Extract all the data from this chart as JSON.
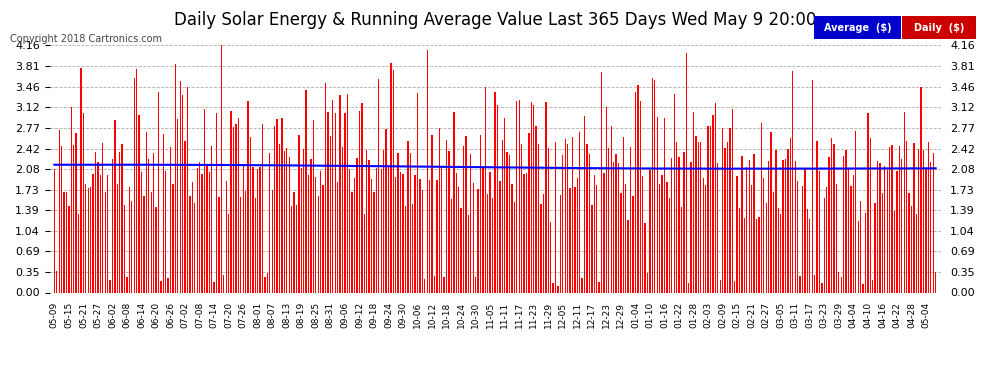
{
  "title": "Daily Solar Energy & Running Average Value Last 365 Days Wed May 9 20:00",
  "copyright": "Copyright 2018 Cartronics.com",
  "n_days": 365,
  "ylim": [
    0.0,
    4.16
  ],
  "yticks": [
    0.0,
    0.35,
    0.69,
    1.04,
    1.39,
    1.73,
    2.08,
    2.42,
    2.77,
    3.12,
    3.46,
    3.81,
    4.16
  ],
  "bar_color": "#ff0000",
  "avg_color": "#0000ff",
  "bg_color": "#ffffff",
  "grid_color": "#999999",
  "title_fontsize": 12,
  "copyright_fontsize": 7,
  "legend_avg_label": "Average  ($)",
  "legend_daily_label": "Daily  ($)",
  "legend_avg_bg": "#0000cc",
  "legend_daily_bg": "#cc0000",
  "x_labels": [
    "05-09",
    "05-15",
    "05-21",
    "05-27",
    "06-02",
    "06-08",
    "06-14",
    "06-20",
    "06-26",
    "07-02",
    "07-08",
    "07-14",
    "07-20",
    "07-26",
    "08-01",
    "08-07",
    "08-13",
    "08-19",
    "08-25",
    "08-31",
    "09-06",
    "09-12",
    "09-18",
    "09-24",
    "09-30",
    "10-06",
    "10-12",
    "10-18",
    "10-24",
    "10-30",
    "11-05",
    "11-11",
    "11-17",
    "11-23",
    "11-29",
    "12-05",
    "12-11",
    "12-17",
    "12-23",
    "12-29",
    "01-04",
    "01-10",
    "01-16",
    "01-22",
    "01-28",
    "02-03",
    "02-09",
    "02-15",
    "02-21",
    "02-27",
    "03-05",
    "03-11",
    "03-17",
    "03-23",
    "03-29",
    "04-04",
    "04-10",
    "04-16",
    "04-22",
    "04-28",
    "05-04"
  ]
}
